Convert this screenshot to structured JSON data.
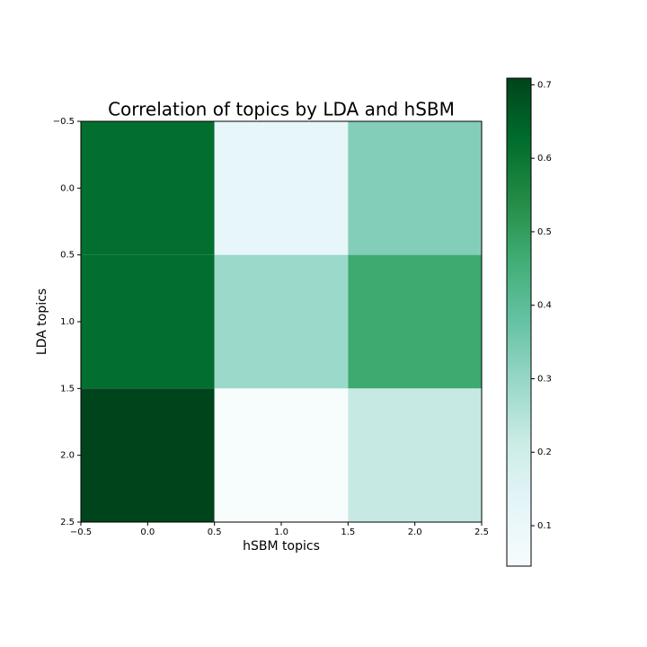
{
  "chart_data": {
    "type": "heatmap",
    "title": "Correlation of topics by LDA and hSBM",
    "x_label": "hSBM topics",
    "y_label": "LDA topics",
    "z": [
      [
        0.62,
        0.12,
        0.33
      ],
      [
        0.62,
        0.29,
        0.47
      ],
      [
        0.709,
        0.045,
        0.22
      ]
    ],
    "xlim": [
      -0.5,
      2.5
    ],
    "xticks": [
      {
        "value": -0.5,
        "label": "−0.5"
      },
      {
        "value": 0,
        "label": "0.0"
      },
      0.5,
      {
        "value": 1,
        "label": "1.0"
      },
      1.5,
      {
        "value": 2,
        "label": "2.0"
      },
      2.5
    ],
    "ylim": [
      2.5,
      -0.5
    ],
    "yticks": [
      {
        "value": -0.5,
        "label": "−0.5"
      },
      {
        "value": 0,
        "label": "0.0"
      },
      0.5,
      {
        "value": 1,
        "label": "1.0"
      },
      1.5,
      {
        "value": 2,
        "label": "2.0"
      },
      2.5
    ],
    "colormap": "BuGn",
    "clim": [
      0.045,
      0.709
    ],
    "cticks": [
      0.1,
      0.2,
      0.3,
      0.4,
      0.5,
      0.6,
      0.7
    ]
  }
}
